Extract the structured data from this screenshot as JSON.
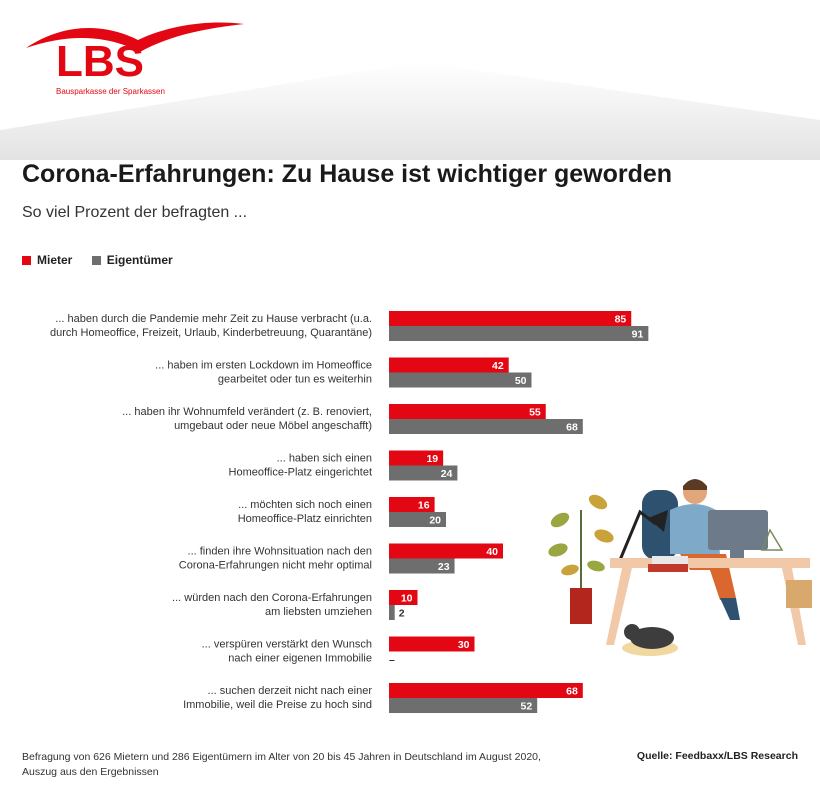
{
  "brand": {
    "name": "LBS",
    "tagline": "Bausparkasse der Sparkassen"
  },
  "header": {
    "title": "Corona-Erfahrungen: Zu Hause ist wichtiger geworden",
    "subtitle": "So viel Prozent der befragten ..."
  },
  "colors": {
    "mieter": "#e30613",
    "eigentuemer": "#6e6e6e",
    "brand_red": "#e30613"
  },
  "chart_data": {
    "type": "bar",
    "orientation": "horizontal",
    "legend": [
      "Mieter",
      "Eigentümer"
    ],
    "legend_placement": "top-left",
    "xlim": [
      0,
      100
    ],
    "grid": false,
    "categories": [
      [
        "... haben durch die Pandemie mehr Zeit zu Hause verbracht (u.a.",
        "durch Homeoffice, Freizeit, Urlaub, Kinderbetreuung, Quarantäne)"
      ],
      [
        "... haben im ersten Lockdown im Homeoffice",
        "gearbeitet oder tun es weiterhin"
      ],
      [
        "... haben ihr Wohnumfeld verändert (z. B. renoviert,",
        "umgebaut oder neue Möbel angeschafft)"
      ],
      [
        "... haben sich einen",
        "Homeoffice-Platz eingerichtet"
      ],
      [
        "... möchten sich noch einen",
        "Homeoffice-Platz einrichten"
      ],
      [
        "... finden ihre Wohnsituation nach den",
        "Corona-Erfahrungen nicht mehr optimal"
      ],
      [
        "... würden nach den Corona-Erfahrungen",
        "am liebsten umziehen"
      ],
      [
        "... verspüren verstärkt den Wunsch",
        "nach einer eigenen Immobilie"
      ],
      [
        "... suchen derzeit nicht nach einer",
        "Immobilie, weil die Preise zu hoch sind"
      ]
    ],
    "series": [
      {
        "name": "Mieter",
        "values": [
          85,
          42,
          55,
          19,
          16,
          40,
          10,
          30,
          68
        ],
        "labels": [
          "85",
          "42",
          "55",
          "19",
          "16",
          "40",
          "10",
          "30",
          "68"
        ]
      },
      {
        "name": "Eigentümer",
        "values": [
          91,
          50,
          68,
          24,
          20,
          23,
          2,
          null,
          52
        ],
        "labels": [
          "91",
          "50",
          "68",
          "24",
          "20",
          "23",
          "2",
          "–",
          "52"
        ]
      }
    ]
  },
  "footer": {
    "note_line1": "Befragung von 626 Mietern und 286 Eigentümern im Alter von 20 bis 45 Jahren in Deutschland im August 2020,",
    "note_line2": "Auszug aus den Ergebnissen",
    "source": "Quelle: Feedbaxx/LBS Research"
  }
}
